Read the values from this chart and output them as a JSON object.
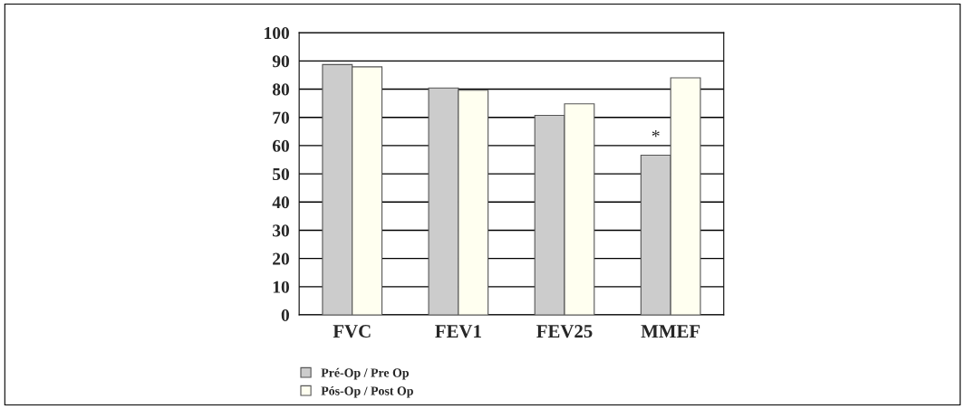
{
  "chart_data": {
    "type": "bar",
    "categories": [
      "FVC",
      "FEV1",
      "FEV25",
      "MMEF"
    ],
    "series": [
      {
        "name": "Pré-Op / Pre Op",
        "color": "#cccccc",
        "values": [
          88.7,
          80.4,
          70.7,
          56.6
        ]
      },
      {
        "name": "Pós-Op / Post Op",
        "color": "#fffff0",
        "values": [
          87.9,
          79.6,
          74.8,
          84.0
        ]
      }
    ],
    "annotations": [
      {
        "text": "*",
        "x": "MMEF",
        "y": 60
      }
    ],
    "ylim": [
      0,
      100
    ],
    "yticks": [
      0,
      10,
      20,
      30,
      40,
      50,
      60,
      70,
      80,
      90,
      100
    ],
    "grid": "y",
    "legend": "bottom left"
  }
}
